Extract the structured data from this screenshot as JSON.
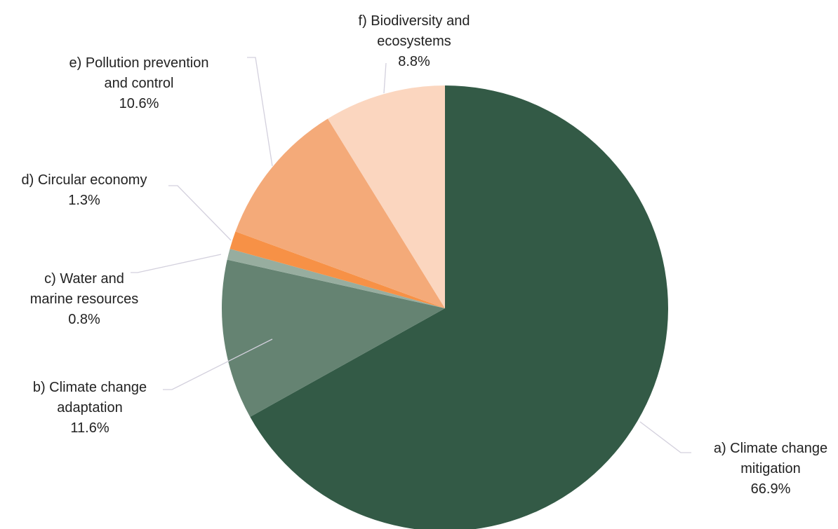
{
  "chart_data": {
    "type": "pie",
    "start_angle_deg": 0,
    "direction": "clockwise",
    "slices": [
      {
        "lines": [
          "a) Climate change",
          "mitigation"
        ],
        "label": "a) Climate change mitigation",
        "value": 66.9,
        "value_label": "66.9%",
        "color": "#335a46"
      },
      {
        "lines": [
          "b) Climate change",
          "adaptation"
        ],
        "label": "b) Climate change adaptation",
        "value": 11.6,
        "value_label": "11.6%",
        "color": "#658372"
      },
      {
        "lines": [
          "c) Water and",
          "marine resources"
        ],
        "label": "c) Water and marine resources",
        "value": 0.8,
        "value_label": "0.8%",
        "color": "#97ad9f"
      },
      {
        "lines": [
          "d) Circular economy"
        ],
        "label": "d) Circular economy",
        "value": 1.3,
        "value_label": "1.3%",
        "color": "#f79146"
      },
      {
        "lines": [
          "e) Pollution prevention",
          "and control"
        ],
        "label": "e) Pollution prevention and control",
        "value": 10.6,
        "value_label": "10.6%",
        "color": "#f4aa79"
      },
      {
        "lines": [
          "f) Biodiversity and",
          "ecosystems"
        ],
        "label": "f) Biodiversity and ecosystems",
        "value": 8.8,
        "value_label": "8.8%",
        "color": "#fbd6bf"
      }
    ]
  }
}
